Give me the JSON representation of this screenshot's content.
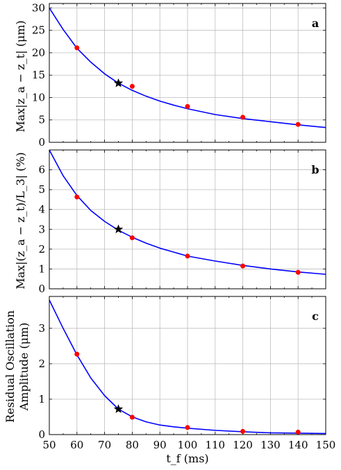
{
  "chart_data": [
    {
      "type": "scatter",
      "panel_label": "a",
      "ylabel": "Max|z_a − z_t| (μm)",
      "xlabel": "",
      "xlim": [
        50,
        150
      ],
      "ylim": [
        0,
        31
      ],
      "yticks": [
        "0",
        "5",
        "10",
        "15",
        "20",
        "25",
        "30"
      ],
      "grid": true,
      "series": [
        {
          "kind": "curve",
          "color": "#0000ff",
          "x": [
            50,
            55,
            60,
            65,
            70,
            75,
            80,
            85,
            90,
            95,
            100,
            110,
            120,
            130,
            140,
            150
          ],
          "y": [
            30,
            25.2,
            21.0,
            17.9,
            15.3,
            13.2,
            11.6,
            10.3,
            9.2,
            8.3,
            7.5,
            6.2,
            5.3,
            4.6,
            3.9,
            3.3
          ]
        },
        {
          "kind": "points",
          "color": "#ff0000",
          "x": [
            60,
            80,
            100,
            120,
            140
          ],
          "y": [
            21.1,
            12.5,
            8.0,
            5.6,
            4.0
          ]
        },
        {
          "kind": "star",
          "color": "#000000",
          "x": [
            75
          ],
          "y": [
            13.2
          ]
        }
      ]
    },
    {
      "type": "scatter",
      "panel_label": "b",
      "ylabel": "Max|(z_a − z_t)/L_3| (%)",
      "xlabel": "",
      "xlim": [
        50,
        150
      ],
      "ylim": [
        0,
        7
      ],
      "yticks": [
        "0",
        "1",
        "2",
        "3",
        "4",
        "5",
        "6"
      ],
      "grid": true,
      "series": [
        {
          "kind": "curve",
          "color": "#0000ff",
          "x": [
            50,
            55,
            60,
            65,
            70,
            75,
            80,
            85,
            90,
            95,
            100,
            110,
            120,
            130,
            140,
            150
          ],
          "y": [
            7.0,
            5.7,
            4.7,
            3.95,
            3.4,
            2.95,
            2.6,
            2.3,
            2.05,
            1.85,
            1.65,
            1.4,
            1.18,
            1.0,
            0.85,
            0.73
          ]
        },
        {
          "kind": "points",
          "color": "#ff0000",
          "x": [
            60,
            80,
            100,
            120,
            140
          ],
          "y": [
            4.63,
            2.57,
            1.65,
            1.15,
            0.83
          ]
        },
        {
          "kind": "star",
          "color": "#000000",
          "x": [
            75
          ],
          "y": [
            3.0
          ]
        }
      ]
    },
    {
      "type": "scatter",
      "panel_label": "c",
      "ylabel_lines": [
        "Residual Oscillation",
        "Amplitude (μm)"
      ],
      "xlabel": "t_f (ms)",
      "xlim": [
        50,
        150
      ],
      "ylim": [
        0,
        3.9
      ],
      "xticks": [
        "50",
        "60",
        "70",
        "80",
        "90",
        "100",
        "110",
        "120",
        "130",
        "140",
        "150"
      ],
      "yticks": [
        "0",
        "1",
        "2",
        "3"
      ],
      "grid": true,
      "series": [
        {
          "kind": "curve",
          "color": "#0000ff",
          "x": [
            50,
            55,
            60,
            65,
            70,
            75,
            80,
            85,
            90,
            95,
            100,
            110,
            120,
            130,
            140,
            150
          ],
          "y": [
            3.8,
            3.0,
            2.25,
            1.6,
            1.1,
            0.72,
            0.5,
            0.36,
            0.27,
            0.22,
            0.18,
            0.12,
            0.08,
            0.05,
            0.04,
            0.03
          ]
        },
        {
          "kind": "points",
          "color": "#ff0000",
          "x": [
            60,
            80,
            100,
            120,
            140
          ],
          "y": [
            2.27,
            0.49,
            0.2,
            0.09,
            0.07
          ]
        },
        {
          "kind": "star",
          "color": "#000000",
          "x": [
            75
          ],
          "y": [
            0.72
          ]
        }
      ]
    }
  ]
}
